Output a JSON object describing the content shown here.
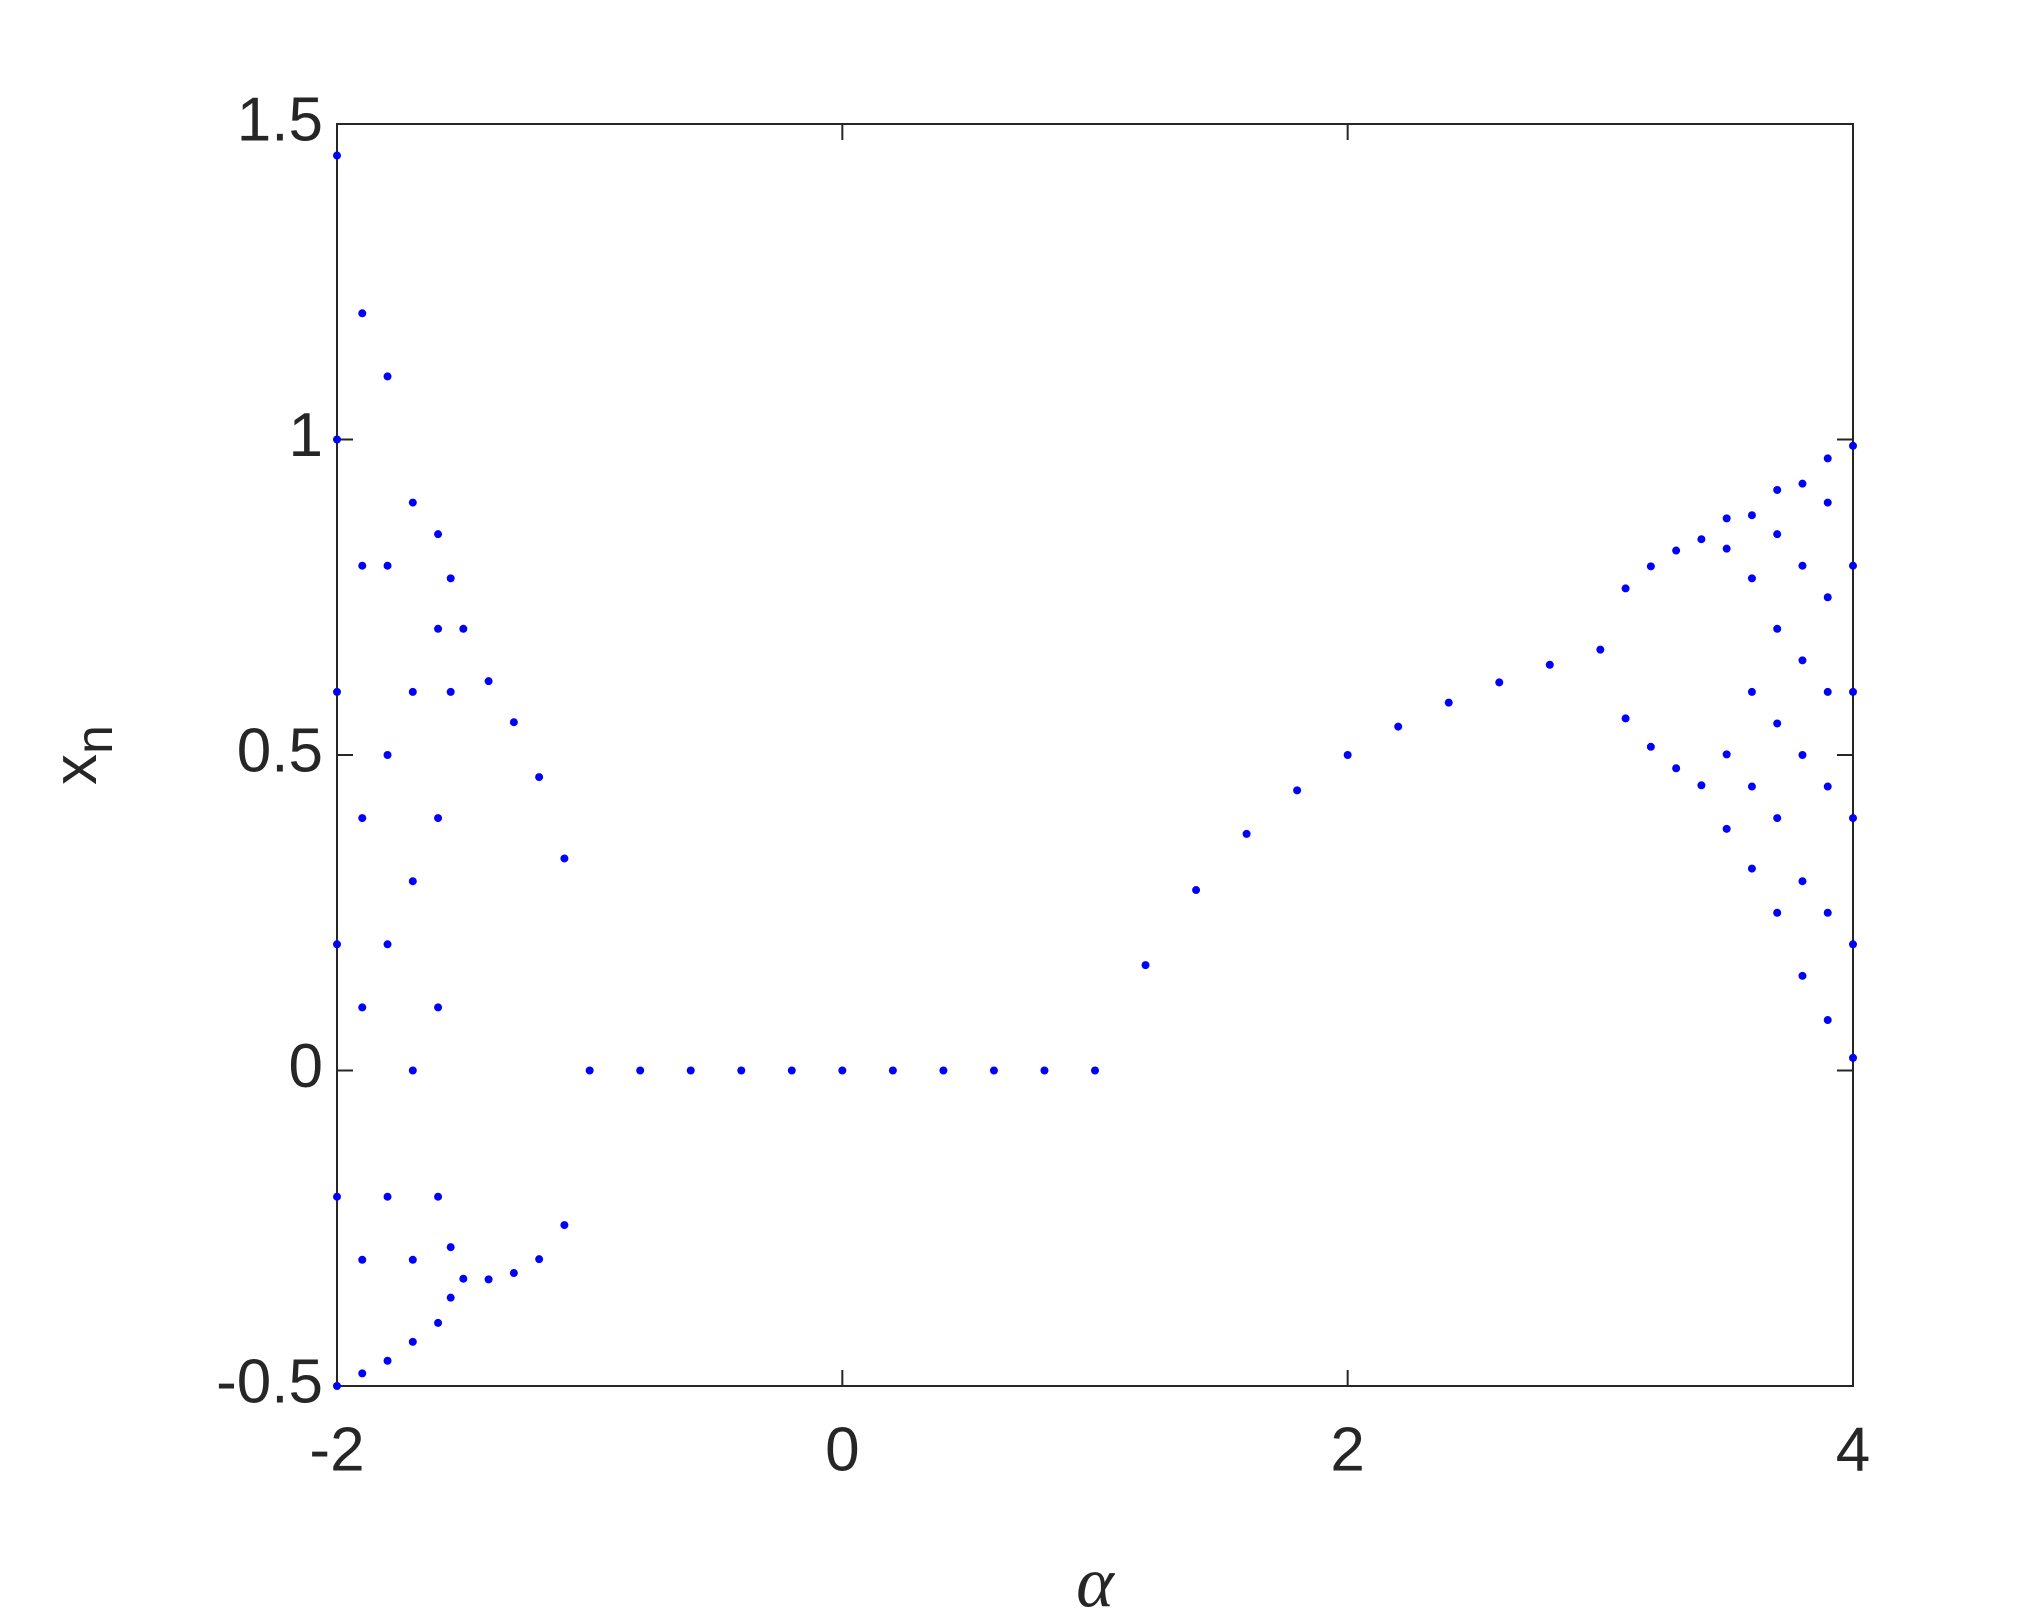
{
  "chart_data": {
    "type": "scatter",
    "xlabel": "α",
    "ylabel": "x",
    "ylabel_sub": "n",
    "xlim": [
      -2,
      4
    ],
    "ylim": [
      -0.5,
      1.5
    ],
    "xticks": [
      -2,
      0,
      2,
      4
    ],
    "yticks": [
      -0.5,
      0,
      0.5,
      1,
      1.5
    ],
    "grid": false,
    "series": [
      {
        "color": "#0000ff",
        "x": [
          -1,
          -0.8,
          -0.6,
          -0.4,
          -0.2,
          0,
          0.2,
          0.4,
          0.6,
          0.8,
          1.0,
          1.2,
          1.4,
          1.6,
          1.8,
          2.0,
          2.2,
          2.4,
          2.6,
          2.8,
          3.0,
          3.1,
          3.1,
          3.2,
          3.2,
          3.3,
          3.3,
          3.4,
          3.4,
          3.5,
          3.5,
          3.5,
          3.5,
          3.6,
          3.6,
          3.6,
          3.6,
          3.6,
          3.7,
          3.7,
          3.7,
          3.7,
          3.7,
          3.7,
          3.8,
          3.8,
          3.8,
          3.8,
          3.8,
          3.8,
          3.9,
          3.9,
          3.9,
          3.9,
          3.9,
          3.9,
          3.9,
          4.0,
          4.0,
          4.0,
          4.0,
          4.0,
          4.0,
          -1.1,
          -1.1,
          -1.2,
          -1.2,
          -1.3,
          -1.3,
          -1.4,
          -1.4,
          -1.5,
          -1.5,
          -1.55,
          -1.55,
          -1.55,
          -1.55,
          -1.6,
          -1.6,
          -1.6,
          -1.6,
          -1.6,
          -1.6,
          -1.7,
          -1.7,
          -1.7,
          -1.7,
          -1.7,
          -1.7,
          -1.8,
          -1.8,
          -1.8,
          -1.8,
          -1.8,
          -1.8,
          -1.9,
          -1.9,
          -1.9,
          -1.9,
          -1.9,
          -1.9,
          -2.0,
          -2.0,
          -2.0,
          -2.0,
          -2.0,
          -2.0
        ],
        "values": [
          0,
          0,
          0,
          0,
          0,
          0,
          0,
          0,
          0,
          0,
          0,
          0.167,
          0.286,
          0.375,
          0.444,
          0.5,
          0.545,
          0.583,
          0.615,
          0.643,
          0.667,
          0.764,
          0.558,
          0.799,
          0.513,
          0.824,
          0.479,
          0.842,
          0.452,
          0.875,
          0.383,
          0.827,
          0.501,
          0.32,
          0.45,
          0.6,
          0.78,
          0.88,
          0.25,
          0.4,
          0.55,
          0.7,
          0.85,
          0.92,
          0.15,
          0.3,
          0.5,
          0.65,
          0.8,
          0.93,
          0.08,
          0.25,
          0.45,
          0.6,
          0.75,
          0.9,
          0.97,
          0.02,
          0.2,
          0.4,
          0.6,
          0.8,
          0.99,
          -0.245,
          0.336,
          -0.299,
          0.465,
          -0.321,
          0.552,
          -0.331,
          0.617,
          0.7,
          -0.33,
          0.78,
          0.6,
          -0.36,
          -0.28,
          -0.4,
          -0.2,
          0.1,
          0.4,
          0.7,
          0.85,
          -0.43,
          -0.3,
          0,
          0.3,
          0.6,
          0.9,
          -0.46,
          -0.2,
          0.2,
          0.5,
          0.8,
          1.1,
          -0.48,
          -0.3,
          0.1,
          0.4,
          0.8,
          1.2,
          -0.5,
          -0.2,
          0.2,
          0.6,
          1.0,
          1.45
        ]
      }
    ]
  }
}
